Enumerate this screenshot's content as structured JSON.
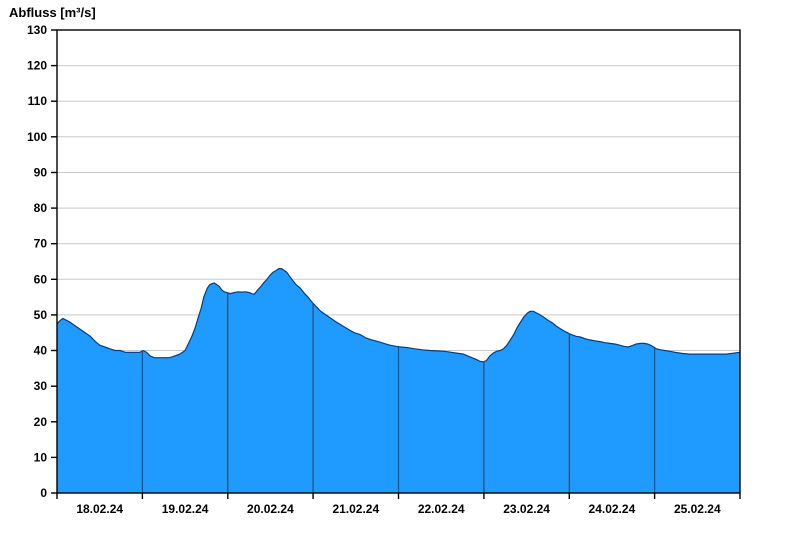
{
  "chart_data": {
    "type": "area",
    "title": "Abfluss [m³/s]",
    "ylabel": "Abfluss [m³/s]",
    "xlabel": "",
    "ylim": [
      0,
      130
    ],
    "ytick_step": 10,
    "x_range_days": [
      0,
      8
    ],
    "x_day_labels": [
      "18.02.24",
      "19.02.24",
      "20.02.24",
      "21.02.24",
      "22.02.24",
      "23.02.24",
      "24.02.24",
      "25.02.24"
    ],
    "grid": true,
    "legend": "none",
    "fill_color": "#1f9bff",
    "line_color": "#0a3c78",
    "day_line_color": "#2e4a6e",
    "grid_color": "#c9c9c9",
    "axis_color": "#000000",
    "points": [
      [
        0.0,
        47.5
      ],
      [
        0.04,
        48.5
      ],
      [
        0.07,
        49.0
      ],
      [
        0.11,
        48.5
      ],
      [
        0.15,
        48.0
      ],
      [
        0.21,
        47.0
      ],
      [
        0.27,
        46.0
      ],
      [
        0.33,
        45.0
      ],
      [
        0.39,
        44.0
      ],
      [
        0.45,
        42.5
      ],
      [
        0.5,
        41.5
      ],
      [
        0.56,
        41.0
      ],
      [
        0.62,
        40.5
      ],
      [
        0.68,
        40.0
      ],
      [
        0.74,
        40.0
      ],
      [
        0.8,
        39.5
      ],
      [
        0.86,
        39.5
      ],
      [
        0.92,
        39.5
      ],
      [
        0.97,
        39.5
      ],
      [
        1.01,
        40.0
      ],
      [
        1.05,
        39.5
      ],
      [
        1.09,
        38.5
      ],
      [
        1.14,
        38.0
      ],
      [
        1.2,
        38.0
      ],
      [
        1.26,
        38.0
      ],
      [
        1.32,
        38.0
      ],
      [
        1.38,
        38.5
      ],
      [
        1.44,
        39.0
      ],
      [
        1.5,
        40.0
      ],
      [
        1.54,
        42.0
      ],
      [
        1.58,
        44.0
      ],
      [
        1.62,
        46.5
      ],
      [
        1.65,
        49.0
      ],
      [
        1.69,
        52.0
      ],
      [
        1.72,
        55.0
      ],
      [
        1.76,
        57.5
      ],
      [
        1.79,
        58.5
      ],
      [
        1.84,
        59.0
      ],
      [
        1.87,
        58.5
      ],
      [
        1.9,
        58.0
      ],
      [
        1.93,
        57.0
      ],
      [
        1.96,
        56.5
      ],
      [
        2.0,
        56.2
      ],
      [
        2.03,
        56.0
      ],
      [
        2.08,
        56.3
      ],
      [
        2.12,
        56.5
      ],
      [
        2.16,
        56.4
      ],
      [
        2.21,
        56.5
      ],
      [
        2.25,
        56.3
      ],
      [
        2.28,
        56.0
      ],
      [
        2.31,
        55.8
      ],
      [
        2.35,
        57.0
      ],
      [
        2.39,
        58.0
      ],
      [
        2.42,
        59.0
      ],
      [
        2.46,
        60.0
      ],
      [
        2.49,
        61.0
      ],
      [
        2.53,
        62.0
      ],
      [
        2.57,
        62.5
      ],
      [
        2.6,
        63.0
      ],
      [
        2.63,
        63.0
      ],
      [
        2.66,
        62.5
      ],
      [
        2.69,
        62.0
      ],
      [
        2.72,
        61.0
      ],
      [
        2.75,
        60.0
      ],
      [
        2.8,
        58.5
      ],
      [
        2.85,
        57.5
      ],
      [
        2.9,
        56.0
      ],
      [
        2.94,
        55.0
      ],
      [
        2.99,
        53.5
      ],
      [
        3.03,
        52.5
      ],
      [
        3.09,
        51.0
      ],
      [
        3.15,
        50.0
      ],
      [
        3.21,
        49.0
      ],
      [
        3.27,
        48.0
      ],
      [
        3.34,
        47.0
      ],
      [
        3.41,
        46.0
      ],
      [
        3.48,
        45.0
      ],
      [
        3.55,
        44.5
      ],
      [
        3.62,
        43.5
      ],
      [
        3.69,
        43.0
      ],
      [
        3.76,
        42.5
      ],
      [
        3.83,
        42.0
      ],
      [
        3.9,
        41.5
      ],
      [
        3.97,
        41.2
      ],
      [
        4.03,
        41.0
      ],
      [
        4.11,
        40.8
      ],
      [
        4.19,
        40.5
      ],
      [
        4.28,
        40.2
      ],
      [
        4.37,
        40.0
      ],
      [
        4.46,
        39.9
      ],
      [
        4.54,
        39.8
      ],
      [
        4.62,
        39.5
      ],
      [
        4.7,
        39.2
      ],
      [
        4.76,
        39.0
      ],
      [
        4.81,
        38.5
      ],
      [
        4.86,
        38.0
      ],
      [
        4.91,
        37.5
      ],
      [
        4.95,
        37.0
      ],
      [
        4.99,
        36.8
      ],
      [
        5.03,
        37.2
      ],
      [
        5.07,
        38.5
      ],
      [
        5.11,
        39.3
      ],
      [
        5.15,
        39.8
      ],
      [
        5.19,
        40.0
      ],
      [
        5.23,
        40.5
      ],
      [
        5.27,
        41.5
      ],
      [
        5.31,
        43.0
      ],
      [
        5.35,
        44.5
      ],
      [
        5.39,
        46.5
      ],
      [
        5.43,
        48.0
      ],
      [
        5.47,
        49.5
      ],
      [
        5.51,
        50.5
      ],
      [
        5.54,
        51.0
      ],
      [
        5.58,
        51.0
      ],
      [
        5.62,
        50.5
      ],
      [
        5.66,
        50.0
      ],
      [
        5.71,
        49.2
      ],
      [
        5.75,
        48.5
      ],
      [
        5.8,
        47.8
      ],
      [
        5.84,
        47.0
      ],
      [
        5.89,
        46.2
      ],
      [
        5.94,
        45.5
      ],
      [
        5.98,
        45.0
      ],
      [
        6.02,
        44.5
      ],
      [
        6.08,
        44.0
      ],
      [
        6.13,
        43.8
      ],
      [
        6.19,
        43.3
      ],
      [
        6.24,
        43.0
      ],
      [
        6.3,
        42.7
      ],
      [
        6.36,
        42.5
      ],
      [
        6.42,
        42.2
      ],
      [
        6.48,
        42.0
      ],
      [
        6.54,
        41.8
      ],
      [
        6.59,
        41.5
      ],
      [
        6.64,
        41.2
      ],
      [
        6.69,
        41.0
      ],
      [
        6.74,
        41.4
      ],
      [
        6.78,
        41.8
      ],
      [
        6.83,
        42.0
      ],
      [
        6.88,
        42.0
      ],
      [
        6.92,
        41.8
      ],
      [
        6.95,
        41.5
      ],
      [
        6.99,
        41.0
      ],
      [
        7.02,
        40.5
      ],
      [
        7.07,
        40.2
      ],
      [
        7.12,
        40.0
      ],
      [
        7.18,
        39.8
      ],
      [
        7.24,
        39.5
      ],
      [
        7.32,
        39.2
      ],
      [
        7.41,
        39.0
      ],
      [
        7.5,
        39.0
      ],
      [
        7.59,
        39.0
      ],
      [
        7.68,
        39.0
      ],
      [
        7.77,
        39.0
      ],
      [
        7.84,
        39.0
      ],
      [
        7.91,
        39.2
      ],
      [
        7.96,
        39.4
      ],
      [
        8.0,
        39.5
      ]
    ]
  }
}
